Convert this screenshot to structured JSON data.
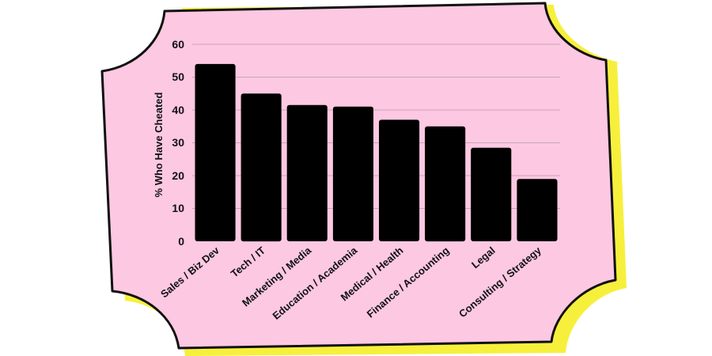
{
  "colors": {
    "card": "#fdc8e2",
    "shadow": "#f6f03c",
    "border": "#111111",
    "bar": "#000000",
    "grid": "#c9a6b6"
  },
  "chart_data": {
    "type": "bar",
    "title": "",
    "xlabel": "",
    "ylabel": "% Who Have Cheated",
    "categories": [
      "Sales / Biz Dev",
      "Tech / IT",
      "Marketing / Media",
      "Education / Academia",
      "Medical / Health",
      "Finance / Accounting",
      "Legal",
      "Consulting / Strategy"
    ],
    "values": [
      54,
      45,
      41.5,
      41,
      37,
      35,
      28.5,
      19
    ],
    "yticks": [
      "0",
      "10",
      "20",
      "30",
      "40",
      "50",
      "60"
    ],
    "ylim": [
      0,
      60
    ],
    "grid": true,
    "legend": "none"
  }
}
